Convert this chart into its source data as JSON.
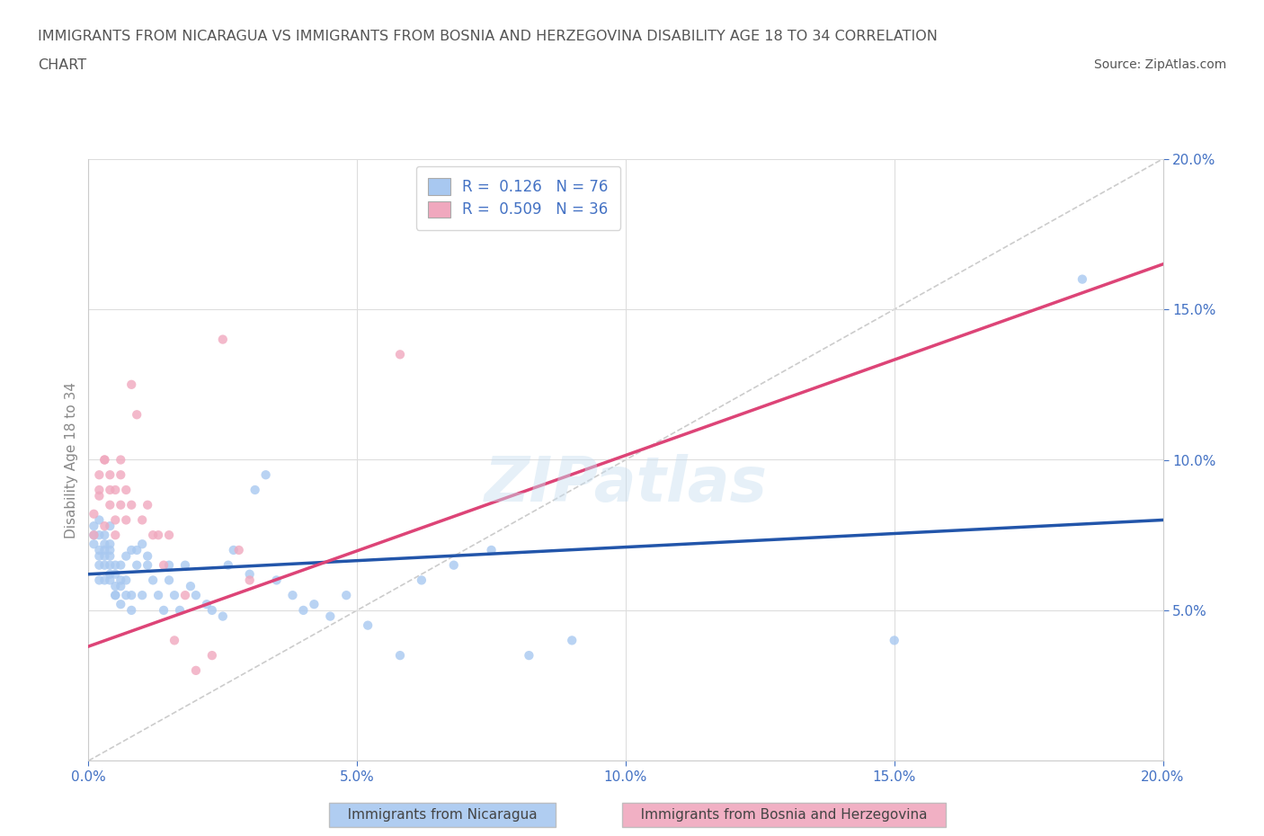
{
  "title_line1": "IMMIGRANTS FROM NICARAGUA VS IMMIGRANTS FROM BOSNIA AND HERZEGOVINA DISABILITY AGE 18 TO 34 CORRELATION",
  "title_line2": "CHART",
  "source_text": "Source: ZipAtlas.com",
  "ylabel": "Disability Age 18 to 34",
  "xlim": [
    0.0,
    0.2
  ],
  "ylim": [
    0.0,
    0.2
  ],
  "xticks": [
    0.0,
    0.05,
    0.1,
    0.15,
    0.2
  ],
  "yticks": [
    0.05,
    0.1,
    0.15,
    0.2
  ],
  "xticklabels": [
    "0.0%",
    "5.0%",
    "10.0%",
    "15.0%",
    "20.0%"
  ],
  "yticklabels": [
    "5.0%",
    "10.0%",
    "15.0%",
    "20.0%"
  ],
  "grid_color": "#dddddd",
  "background_color": "#ffffff",
  "watermark_text": "ZIPatlas",
  "legend_R1": "0.126",
  "legend_N1": "76",
  "legend_R2": "0.509",
  "legend_N2": "36",
  "color_nicaragua": "#a8c8f0",
  "color_bosnia": "#f0a8be",
  "trendline_color_nicaragua": "#2255aa",
  "trendline_color_bosnia": "#dd4477",
  "diagonal_color": "#cccccc",
  "scatter_alpha": 0.8,
  "scatter_size": 55,
  "nicaragua_x": [
    0.001,
    0.001,
    0.001,
    0.002,
    0.002,
    0.002,
    0.002,
    0.002,
    0.002,
    0.003,
    0.003,
    0.003,
    0.003,
    0.003,
    0.003,
    0.004,
    0.004,
    0.004,
    0.004,
    0.004,
    0.004,
    0.004,
    0.005,
    0.005,
    0.005,
    0.005,
    0.005,
    0.006,
    0.006,
    0.006,
    0.006,
    0.007,
    0.007,
    0.007,
    0.008,
    0.008,
    0.008,
    0.009,
    0.009,
    0.01,
    0.01,
    0.011,
    0.011,
    0.012,
    0.013,
    0.014,
    0.015,
    0.015,
    0.016,
    0.017,
    0.018,
    0.019,
    0.02,
    0.022,
    0.023,
    0.025,
    0.026,
    0.027,
    0.03,
    0.031,
    0.033,
    0.035,
    0.038,
    0.04,
    0.042,
    0.045,
    0.048,
    0.052,
    0.058,
    0.062,
    0.068,
    0.075,
    0.082,
    0.09,
    0.15,
    0.185
  ],
  "nicaragua_y": [
    0.075,
    0.072,
    0.078,
    0.068,
    0.08,
    0.065,
    0.07,
    0.075,
    0.06,
    0.072,
    0.068,
    0.075,
    0.065,
    0.07,
    0.06,
    0.078,
    0.065,
    0.07,
    0.062,
    0.068,
    0.072,
    0.06,
    0.055,
    0.058,
    0.062,
    0.065,
    0.055,
    0.06,
    0.052,
    0.058,
    0.065,
    0.06,
    0.055,
    0.068,
    0.07,
    0.05,
    0.055,
    0.065,
    0.07,
    0.055,
    0.072,
    0.068,
    0.065,
    0.06,
    0.055,
    0.05,
    0.065,
    0.06,
    0.055,
    0.05,
    0.065,
    0.058,
    0.055,
    0.052,
    0.05,
    0.048,
    0.065,
    0.07,
    0.062,
    0.09,
    0.095,
    0.06,
    0.055,
    0.05,
    0.052,
    0.048,
    0.055,
    0.045,
    0.035,
    0.06,
    0.065,
    0.07,
    0.035,
    0.04,
    0.04,
    0.16
  ],
  "bosnia_x": [
    0.001,
    0.001,
    0.002,
    0.002,
    0.002,
    0.003,
    0.003,
    0.003,
    0.004,
    0.004,
    0.004,
    0.005,
    0.005,
    0.005,
    0.006,
    0.006,
    0.006,
    0.007,
    0.007,
    0.008,
    0.008,
    0.009,
    0.01,
    0.011,
    0.012,
    0.013,
    0.014,
    0.015,
    0.016,
    0.018,
    0.02,
    0.023,
    0.025,
    0.028,
    0.03,
    0.058
  ],
  "bosnia_y": [
    0.075,
    0.082,
    0.09,
    0.088,
    0.095,
    0.1,
    0.078,
    0.1,
    0.09,
    0.095,
    0.085,
    0.08,
    0.09,
    0.075,
    0.1,
    0.095,
    0.085,
    0.09,
    0.08,
    0.125,
    0.085,
    0.115,
    0.08,
    0.085,
    0.075,
    0.075,
    0.065,
    0.075,
    0.04,
    0.055,
    0.03,
    0.035,
    0.14,
    0.07,
    0.06,
    0.135
  ],
  "tick_color": "#4472c4",
  "axis_label_color": "#888888",
  "title_color": "#555555"
}
